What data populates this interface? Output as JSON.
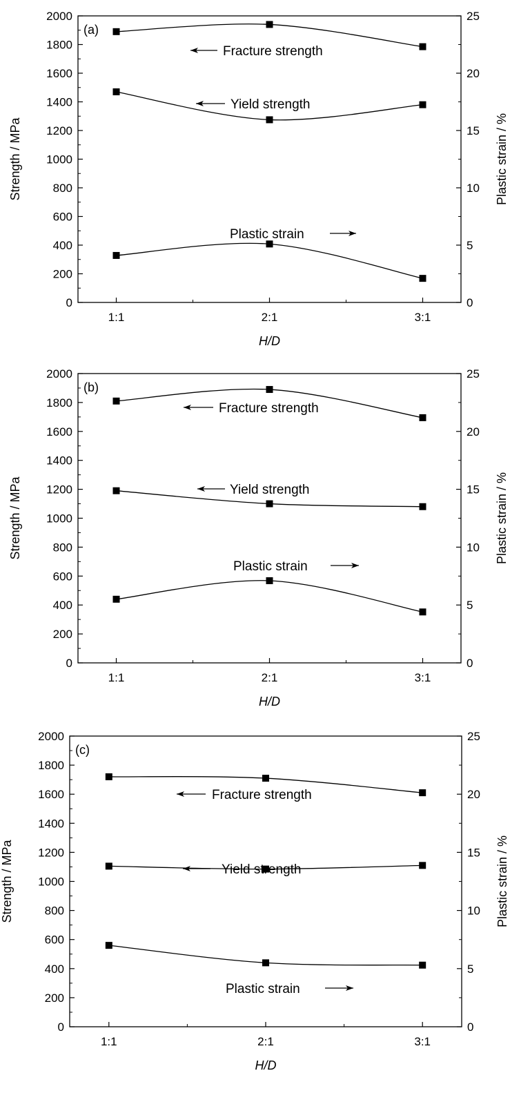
{
  "chart_data": [
    {
      "type": "line",
      "panel_label": "(a)",
      "categories": [
        "1:1",
        "2:1",
        "3:1"
      ],
      "xlabel": "H/D",
      "ylabel": "Strength / MPa",
      "y2label": "Plastic strain / %",
      "ylim": [
        0,
        2000
      ],
      "yticks": [
        "0",
        "200",
        "400",
        "600",
        "800",
        "1000",
        "1200",
        "1400",
        "1600",
        "1800",
        "2000"
      ],
      "y2lim": [
        0,
        25
      ],
      "y2ticks": [
        "0",
        "5",
        "10",
        "15",
        "20",
        "25"
      ],
      "series": [
        {
          "name": "Fracture strength",
          "axis": "left",
          "values": [
            1890,
            1940,
            1785
          ],
          "arrow": "left"
        },
        {
          "name": "Yield strength",
          "axis": "left",
          "values": [
            1470,
            1275,
            1380
          ],
          "arrow": "left"
        },
        {
          "name": "Plastic strain",
          "axis": "right",
          "values": [
            4.1,
            5.1,
            2.1
          ],
          "arrow": "right"
        }
      ]
    },
    {
      "type": "line",
      "panel_label": "(b)",
      "categories": [
        "1:1",
        "2:1",
        "3:1"
      ],
      "xlabel": "H/D",
      "ylabel": "Strength / MPa",
      "y2label": "Plastic strain / %",
      "ylim": [
        0,
        2000
      ],
      "yticks": [
        "0",
        "200",
        "400",
        "600",
        "800",
        "1000",
        "1200",
        "1400",
        "1600",
        "1800",
        "2000"
      ],
      "y2lim": [
        0,
        25
      ],
      "y2ticks": [
        "0",
        "5",
        "10",
        "15",
        "20",
        "25"
      ],
      "series": [
        {
          "name": "Fracture strength",
          "axis": "left",
          "values": [
            1810,
            1890,
            1695
          ],
          "arrow": "left"
        },
        {
          "name": "Yield strength",
          "axis": "left",
          "values": [
            1190,
            1100,
            1080
          ],
          "arrow": "left"
        },
        {
          "name": "Plastic strain",
          "axis": "right",
          "values": [
            5.5,
            7.1,
            4.4
          ],
          "arrow": "right"
        }
      ]
    },
    {
      "type": "line",
      "panel_label": "(c)",
      "categories": [
        "1:1",
        "2:1",
        "3:1"
      ],
      "xlabel": "H/D",
      "ylabel": "Strength / MPa",
      "y2label": "Plastic strain / %",
      "ylim": [
        0,
        2000
      ],
      "yticks": [
        "0",
        "200",
        "400",
        "600",
        "800",
        "1000",
        "1200",
        "1400",
        "1600",
        "1800",
        "2000"
      ],
      "y2lim": [
        0,
        25
      ],
      "y2ticks": [
        "0",
        "5",
        "10",
        "15",
        "20",
        "25"
      ],
      "series": [
        {
          "name": "Fracture strength",
          "axis": "left",
          "values": [
            1720,
            1710,
            1610
          ],
          "arrow": "left"
        },
        {
          "name": "Yield strength",
          "axis": "left",
          "values": [
            1105,
            1085,
            1110
          ],
          "arrow": "left"
        },
        {
          "name": "Plastic strain",
          "axis": "right",
          "values": [
            7.0,
            5.5,
            5.3
          ],
          "arrow": "right"
        }
      ]
    }
  ]
}
